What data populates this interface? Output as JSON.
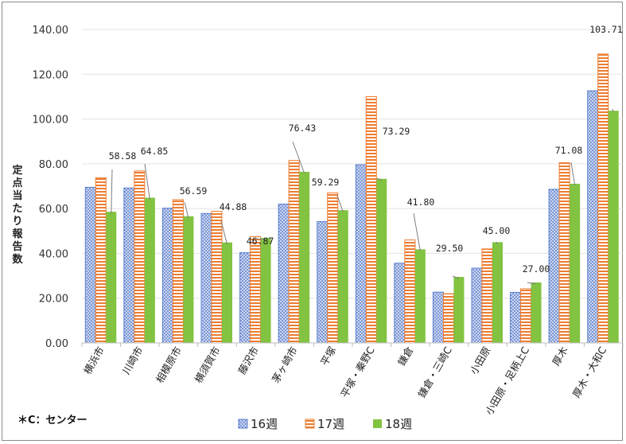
{
  "chart_data": {
    "type": "bar",
    "ylabel": "定点当たり報告数",
    "ylim": [
      0,
      140
    ],
    "yticks": [
      "0.00",
      "20.00",
      "40.00",
      "60.00",
      "80.00",
      "100.00",
      "120.00",
      "140.00"
    ],
    "grid": true,
    "legend_position": "bottom",
    "note": "＊C：センター",
    "categories": [
      "横浜市",
      "川崎市",
      "相模原市",
      "横須賀市",
      "藤沢市",
      "茅ヶ崎市",
      "平塚",
      "平塚・秦野C",
      "鎌倉",
      "鎌倉・三崎C",
      "小田原",
      "小田原・足柄上C",
      "厚木",
      "厚木・大和C"
    ],
    "series": [
      {
        "name": "16週",
        "pattern": "dots",
        "color": "#5b7fd0",
        "values": [
          69.5,
          69.2,
          60.2,
          57.8,
          40.3,
          62.0,
          54.2,
          79.6,
          35.6,
          22.7,
          33.4,
          22.6,
          68.6,
          112.6
        ]
      },
      {
        "name": "17週",
        "pattern": "stripes",
        "color": "#ed7d31",
        "values": [
          73.8,
          76.8,
          64.0,
          58.8,
          47.5,
          81.5,
          67.0,
          110.0,
          46.0,
          22.0,
          42.0,
          24.2,
          80.5,
          129.0
        ]
      },
      {
        "name": "18週",
        "pattern": "solid",
        "color": "#82c341",
        "values": [
          58.58,
          64.85,
          56.59,
          44.88,
          46.87,
          76.43,
          59.29,
          73.29,
          41.8,
          29.5,
          45.0,
          27.0,
          71.08,
          103.71
        ]
      }
    ],
    "data_labels": [
      "58.58",
      "64.85",
      "56.59",
      "44.88",
      "46.87",
      "76.43",
      "59.29",
      "73.29",
      "41.80",
      "29.50",
      "45.00",
      "27.00",
      "71.08",
      "103.71"
    ]
  }
}
